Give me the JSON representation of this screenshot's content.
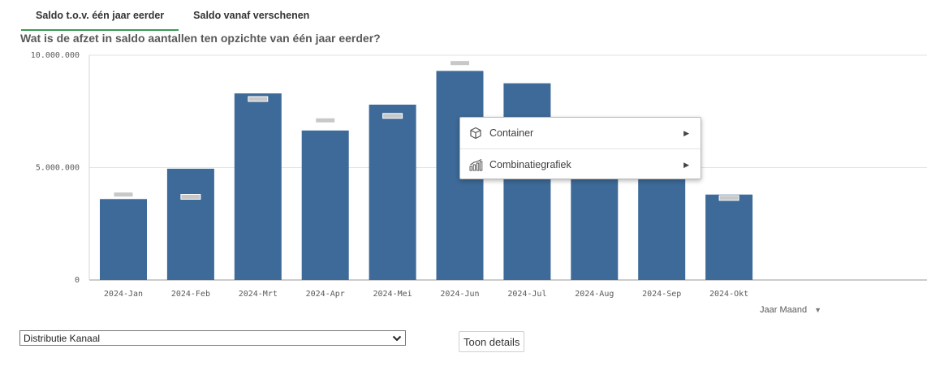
{
  "tabs": [
    {
      "label": "Saldo t.o.v. één jaar eerder",
      "active": true
    },
    {
      "label": "Saldo vanaf verschenen",
      "active": false
    }
  ],
  "question": "Wat is de afzet in saldo aantallen ten opzichte van één jaar eerder?",
  "chart_data": {
    "type": "bar",
    "title": "",
    "xlabel": "Jaar Maand",
    "ylabel": "",
    "ylim": [
      0,
      10000000
    ],
    "yticks": [
      0,
      5000000,
      10000000
    ],
    "ytick_labels": [
      "0",
      "5.000.000",
      "10.000.000"
    ],
    "categories": [
      "2024-Jan",
      "2024-Feb",
      "2024-Mrt",
      "2024-Apr",
      "2024-Mei",
      "2024-Jun",
      "2024-Jul",
      "2024-Aug",
      "2024-Sep",
      "2024-Okt"
    ],
    "series": [
      {
        "values": [
          3600000,
          4950000,
          8300000,
          6650000,
          7800000,
          9300000,
          8750000,
          5300000,
          5200000,
          3800000
        ],
        "color": "#3d6a98"
      },
      {
        "values": [
          3800000,
          3700000,
          8050000,
          7100000,
          7300000,
          9650000,
          null,
          null,
          null,
          3650000
        ],
        "color": "#c8c8c8"
      }
    ],
    "grid": true,
    "legend": "none"
  },
  "context_menu": {
    "items": [
      {
        "label": "Container",
        "icon": "cube-icon"
      },
      {
        "label": "Combinatiegrafiek",
        "icon": "combo-chart-icon"
      }
    ]
  },
  "dimension_selector": {
    "label": "Jaar Maand"
  },
  "select": {
    "value": "Distributie Kanaal"
  },
  "details_button": {
    "label": "Toon details"
  }
}
